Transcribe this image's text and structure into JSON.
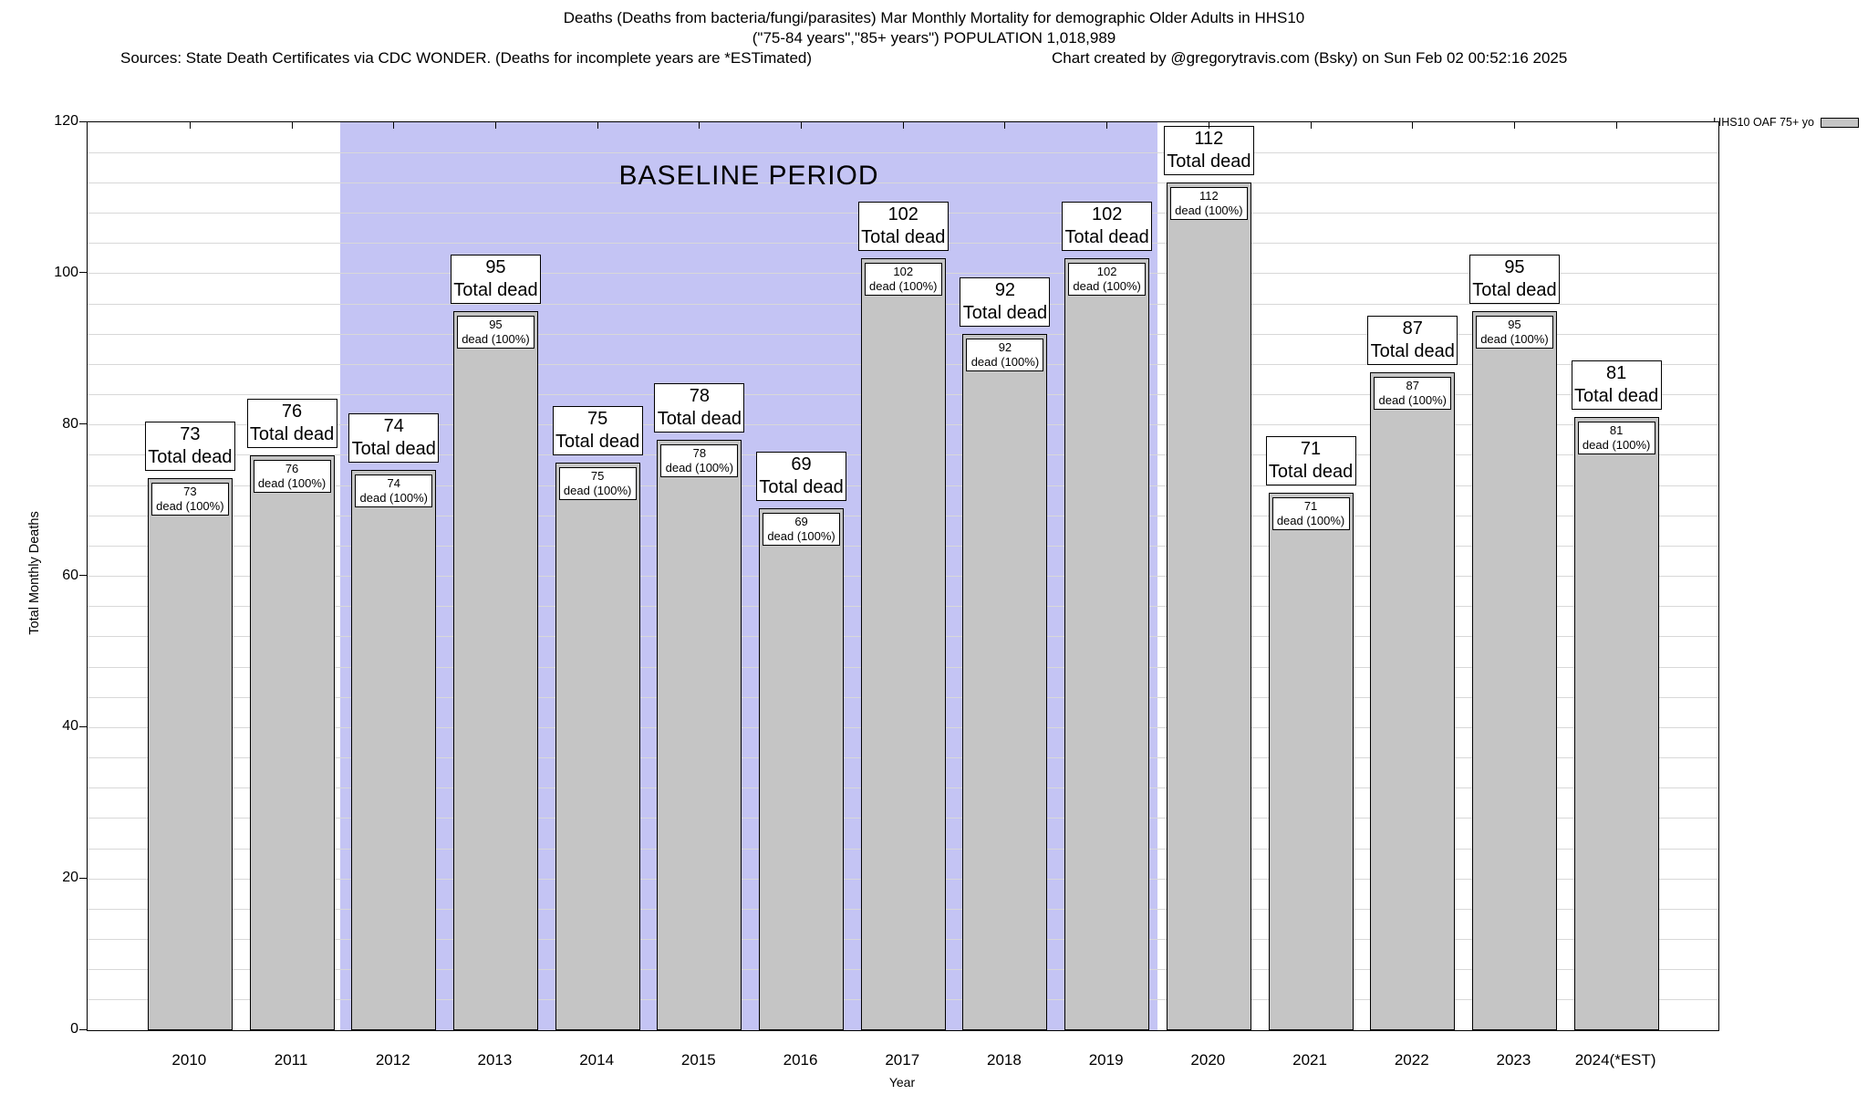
{
  "title": {
    "line1": "Deaths (Deaths from bacteria/fungi/parasites) Mar Monthly Mortality for demographic Older Adults in HHS10",
    "line2": "(\"75-84 years\",\"85+ years\") POPULATION 1,018,989",
    "sources": "Sources: State Death Certificates via CDC WONDER. (Deaths for incomplete years are *ESTimated)",
    "credit": "Chart created by @gregorytravis.com (Bsky) on Sun Feb 02 00:52:16 2025"
  },
  "legend": {
    "label": "HHS10 OAF 75+ yo",
    "swatch_color": "#c5c5c5"
  },
  "baseline_label": "BASELINE PERIOD",
  "axes": {
    "ylabel": "Total Monthly Deaths",
    "xlabel": "Year",
    "yticks": [
      0,
      20,
      40,
      60,
      80,
      100,
      120
    ],
    "minor_grid_step": 4
  },
  "chart_data": {
    "type": "bar",
    "title": "Deaths (Deaths from bacteria/fungi/parasites) Mar Monthly Mortality for demographic Older Adults in HHS10",
    "categories": [
      "2010",
      "2011",
      "2012",
      "2013",
      "2014",
      "2015",
      "2016",
      "2017",
      "2018",
      "2019",
      "2020",
      "2021",
      "2022",
      "2023",
      "2024(*EST)"
    ],
    "values": [
      73,
      76,
      74,
      95,
      75,
      78,
      69,
      102,
      92,
      102,
      112,
      71,
      87,
      95,
      81
    ],
    "series_name": "HHS10 OAF 75+ yo",
    "bar_outer_label_suffix": "Total dead",
    "bar_inner_label_suffix": "dead (100%)",
    "baseline_period": {
      "from": "2012",
      "to": "2019",
      "label": "BASELINE PERIOD"
    },
    "xlabel": "Year",
    "ylabel": "Total Monthly Deaths",
    "ylim": [
      0,
      120
    ],
    "grid": true,
    "legend_position": "top-right",
    "colors": {
      "bar_fill": "#c5c5c5",
      "baseline_band": "#c4c4f4",
      "grid": "#d8d8d8"
    }
  }
}
